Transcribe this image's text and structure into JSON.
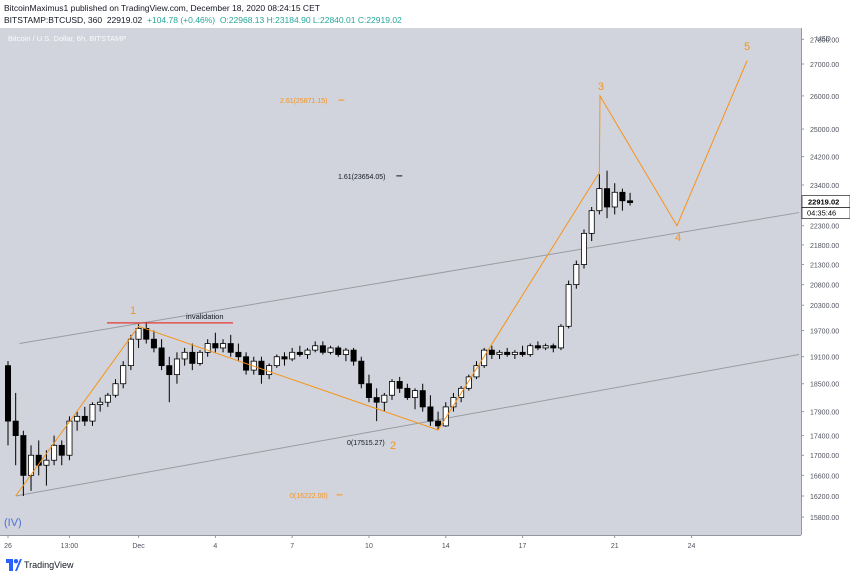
{
  "header": {
    "line1": "BitcoinMaximus1 published on TradingView.com, December 18, 2020 08:24:15 CET",
    "symbol": "BITSTAMP:BTCUSD, 360",
    "last": "22919.02",
    "change": "+104.78 (+0.46%)",
    "ohlc": "O:22968.13 H:23184.90 L:22840.01 C:22919.02"
  },
  "footer": {
    "brand": "TradingView"
  },
  "chart_data": {
    "type": "candlestick",
    "title": "Bitcoin / U.S. Dollar, 6h, BITSTAMP",
    "currency": "USD",
    "price_axis": {
      "ticks": [
        15800,
        16200,
        16600,
        17000,
        17400,
        17900,
        18500,
        19100,
        19700,
        20300,
        20800,
        21300,
        21800,
        22300,
        23400,
        24200,
        25000,
        26000,
        27000,
        27800
      ],
      "tick_labels": [
        "15800.00",
        "16200.00",
        "16600.00",
        "17000.00",
        "17400.00",
        "17900.00",
        "18500.00",
        "19100.00",
        "19700.00",
        "20300.00",
        "20800.00",
        "21300.00",
        "21800.00",
        "22300.00",
        "23400.00",
        "24200.00",
        "25000.00",
        "26000.00",
        "27000.00",
        "27800.00"
      ],
      "scale": "log"
    },
    "time_axis": {
      "labels": [
        "26",
        "13:00",
        "Dec",
        "4",
        "7",
        "10",
        "14",
        "17",
        "21",
        "24"
      ],
      "bar_index": [
        0,
        8,
        17,
        27,
        37,
        47,
        57,
        67,
        79,
        89
      ]
    },
    "current_price": "22919.02",
    "countdown": "04:35:46",
    "candles": [
      [
        18900,
        19000,
        17200,
        17700
      ],
      [
        17700,
        18300,
        16800,
        17400
      ],
      [
        17400,
        17500,
        16200,
        16600
      ],
      [
        16600,
        17200,
        16300,
        17000
      ],
      [
        17000,
        17300,
        16600,
        16800
      ],
      [
        16800,
        17100,
        16400,
        16900
      ],
      [
        16900,
        17400,
        16800,
        17200
      ],
      [
        17200,
        17300,
        16800,
        17000
      ],
      [
        17000,
        17800,
        16900,
        17700
      ],
      [
        17700,
        17900,
        17500,
        17800
      ],
      [
        17800,
        18000,
        17600,
        17700
      ],
      [
        17700,
        18100,
        17600,
        18050
      ],
      [
        18050,
        18200,
        17900,
        18100
      ],
      [
        18100,
        18300,
        18000,
        18250
      ],
      [
        18250,
        18600,
        18200,
        18500
      ],
      [
        18500,
        19000,
        18400,
        18900
      ],
      [
        18900,
        19600,
        18800,
        19500
      ],
      [
        19500,
        19850,
        19300,
        19750
      ],
      [
        19750,
        19900,
        19400,
        19500
      ],
      [
        19500,
        19700,
        19200,
        19300
      ],
      [
        19300,
        19500,
        18800,
        18900
      ],
      [
        18900,
        19100,
        18100,
        18700
      ],
      [
        18700,
        19200,
        18500,
        19050
      ],
      [
        19050,
        19300,
        18900,
        19200
      ],
      [
        19200,
        19400,
        18800,
        18950
      ],
      [
        18950,
        19250,
        18900,
        19200
      ],
      [
        19200,
        19500,
        19100,
        19400
      ],
      [
        19400,
        19650,
        19200,
        19300
      ],
      [
        19300,
        19500,
        19200,
        19400
      ],
      [
        19400,
        19600,
        19100,
        19200
      ],
      [
        19200,
        19400,
        19000,
        19100
      ],
      [
        19100,
        19200,
        18700,
        18800
      ],
      [
        18800,
        19100,
        18700,
        19000
      ],
      [
        19000,
        19100,
        18500,
        18700
      ],
      [
        18700,
        18950,
        18600,
        18900
      ],
      [
        18900,
        19150,
        18850,
        19100
      ],
      [
        19100,
        19200,
        18900,
        19050
      ],
      [
        19050,
        19300,
        19000,
        19200
      ],
      [
        19200,
        19350,
        19100,
        19150
      ],
      [
        19150,
        19300,
        19050,
        19250
      ],
      [
        19250,
        19450,
        19200,
        19350
      ],
      [
        19350,
        19450,
        19150,
        19200
      ],
      [
        19200,
        19350,
        19150,
        19300
      ],
      [
        19300,
        19350,
        19100,
        19150
      ],
      [
        19150,
        19300,
        19000,
        19250
      ],
      [
        19250,
        19300,
        18900,
        19000
      ],
      [
        19000,
        19100,
        18400,
        18500
      ],
      [
        18500,
        18700,
        18100,
        18200
      ],
      [
        18200,
        18400,
        17700,
        18100
      ],
      [
        18100,
        18300,
        17900,
        18250
      ],
      [
        18250,
        18600,
        18150,
        18550
      ],
      [
        18550,
        18650,
        18300,
        18400
      ],
      [
        18400,
        18500,
        18150,
        18200
      ],
      [
        18200,
        18400,
        17950,
        18350
      ],
      [
        18350,
        18500,
        17900,
        18000
      ],
      [
        18000,
        18250,
        17600,
        17700
      ],
      [
        17700,
        17900,
        17515,
        17600
      ],
      [
        17600,
        18100,
        17580,
        18000
      ],
      [
        18000,
        18300,
        17900,
        18200
      ],
      [
        18200,
        18450,
        18100,
        18400
      ],
      [
        18400,
        18700,
        18350,
        18650
      ],
      [
        18650,
        19000,
        18600,
        18900
      ],
      [
        18900,
        19300,
        18850,
        19250
      ],
      [
        19250,
        19350,
        19050,
        19150
      ],
      [
        19150,
        19250,
        19050,
        19200
      ],
      [
        19200,
        19300,
        19100,
        19150
      ],
      [
        19150,
        19250,
        19050,
        19200
      ],
      [
        19200,
        19350,
        19100,
        19150
      ],
      [
        19150,
        19400,
        19100,
        19350
      ],
      [
        19350,
        19450,
        19250,
        19300
      ],
      [
        19300,
        19400,
        19250,
        19350
      ],
      [
        19350,
        19400,
        19200,
        19300
      ],
      [
        19300,
        19850,
        19250,
        19800
      ],
      [
        19800,
        20900,
        19750,
        20800
      ],
      [
        20800,
        21400,
        20700,
        21300
      ],
      [
        21300,
        22200,
        21200,
        22100
      ],
      [
        22100,
        22800,
        21900,
        22700
      ],
      [
        22700,
        23700,
        22600,
        23300
      ],
      [
        23300,
        23800,
        22500,
        22800
      ],
      [
        22800,
        23450,
        22600,
        23200
      ],
      [
        23200,
        23300,
        22700,
        22968
      ],
      [
        22968,
        23184,
        22840,
        22919
      ]
    ],
    "annotations": {
      "wave_labels": [
        "1",
        "2",
        "3",
        "4",
        "5",
        "(IV)"
      ],
      "invalidation": "invalidation",
      "fib_levels": [
        "2.61(25871.15)",
        "1.61(23654.05)",
        "0(17515.27)",
        "0(16222.00)"
      ]
    },
    "colors": {
      "up": "#ffffff",
      "down": "#000000",
      "projection": "#f7931a",
      "invalidation": "#e53935",
      "channel": "#9a9ca3",
      "wave_labels": "#f7931a",
      "wave_iv": "#4f6fd8",
      "background": "#d1d4dc"
    }
  }
}
